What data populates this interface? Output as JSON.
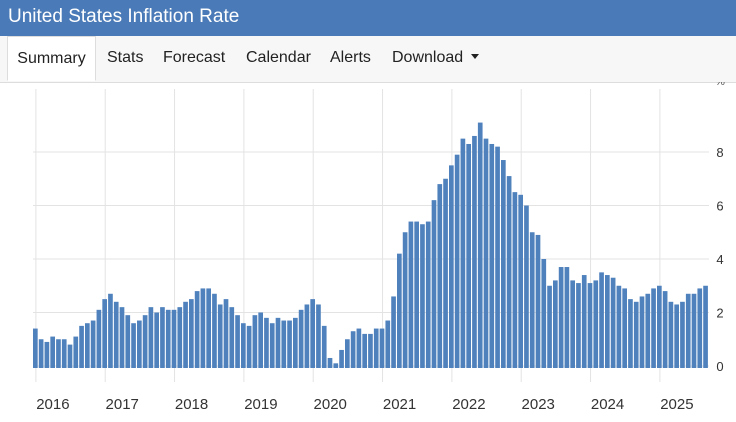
{
  "header": {
    "title": "United States Inflation Rate"
  },
  "tabs": [
    {
      "label": "Summary",
      "active": true
    },
    {
      "label": "Stats"
    },
    {
      "label": "Forecast"
    },
    {
      "label": "Calendar"
    },
    {
      "label": "Alerts"
    },
    {
      "label": "Download",
      "dropdown": true
    }
  ],
  "colors": {
    "bar": "#4f81bd",
    "header": "#4a7ab7",
    "grid": "#e3e3e3"
  },
  "chart_data": {
    "type": "bar",
    "title": "United States Inflation Rate",
    "xlabel": "",
    "ylabel": "%",
    "ylim": [
      -0.2,
      10
    ],
    "yticks": [
      0,
      2,
      4,
      6,
      8
    ],
    "xticks": [
      "2016",
      "2017",
      "2018",
      "2019",
      "2020",
      "2021",
      "2022",
      "2023",
      "2024",
      "2025"
    ],
    "start": "2016-01",
    "values": [
      1.4,
      1.0,
      0.9,
      1.1,
      1.0,
      1.0,
      0.8,
      1.1,
      1.5,
      1.6,
      1.7,
      2.1,
      2.5,
      2.7,
      2.4,
      2.2,
      1.9,
      1.6,
      1.7,
      1.9,
      2.2,
      2.0,
      2.2,
      2.1,
      2.1,
      2.2,
      2.4,
      2.5,
      2.8,
      2.9,
      2.9,
      2.7,
      2.3,
      2.5,
      2.2,
      1.9,
      1.6,
      1.5,
      1.9,
      2.0,
      1.8,
      1.6,
      1.8,
      1.7,
      1.7,
      1.8,
      2.1,
      2.3,
      2.5,
      2.3,
      1.5,
      0.3,
      0.1,
      0.6,
      1.0,
      1.3,
      1.4,
      1.2,
      1.2,
      1.4,
      1.4,
      1.7,
      2.6,
      4.2,
      5.0,
      5.4,
      5.4,
      5.3,
      5.4,
      6.2,
      6.8,
      7.0,
      7.5,
      7.9,
      8.5,
      8.3,
      8.6,
      9.1,
      8.5,
      8.3,
      8.2,
      7.7,
      7.1,
      6.5,
      6.4,
      6.0,
      5.0,
      4.9,
      4.0,
      3.0,
      3.2,
      3.7,
      3.7,
      3.2,
      3.1,
      3.4,
      3.1,
      3.2,
      3.5,
      3.4,
      3.3,
      3.0,
      2.9,
      2.5,
      2.4,
      2.6,
      2.7,
      2.9,
      3.0,
      2.8,
      2.4,
      2.3,
      2.4,
      2.7,
      2.7,
      2.9,
      3.0
    ]
  }
}
